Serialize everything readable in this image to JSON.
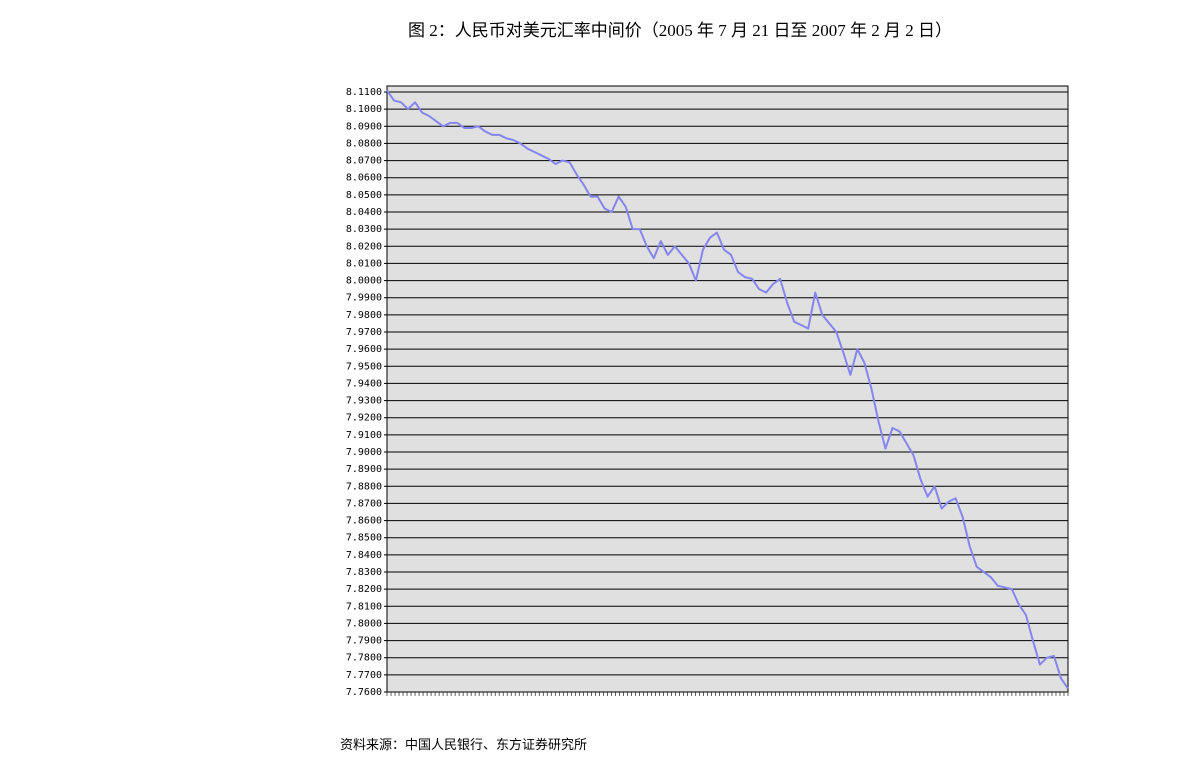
{
  "chart_data": {
    "type": "line",
    "title": "图 2：人民币对美元汇率中间价（2005 年 7 月 21 日至 2007 年 2 月 2 日）",
    "source": "资料来源：中国人民银行、东方证券研究所",
    "color": "#8585f0",
    "grid": true,
    "ylim": [
      7.76,
      8.1135
    ],
    "yticks": [
      {
        "value": 8.11,
        "label": "8.1100"
      },
      {
        "value": 8.1,
        "label": "8.1000"
      },
      {
        "value": 8.09,
        "label": "8.0900"
      },
      {
        "value": 8.08,
        "label": "8.0800"
      },
      {
        "value": 8.07,
        "label": "8.0700"
      },
      {
        "value": 8.06,
        "label": "8.0600"
      },
      {
        "value": 8.05,
        "label": "8.0500"
      },
      {
        "value": 8.04,
        "label": "8.0400"
      },
      {
        "value": 8.03,
        "label": "8.0300"
      },
      {
        "value": 8.02,
        "label": "8.0200"
      },
      {
        "value": 8.01,
        "label": "8.0100"
      },
      {
        "value": 8.0,
        "label": "8.0000"
      },
      {
        "value": 7.99,
        "label": "7.9900"
      },
      {
        "value": 7.98,
        "label": "7.9800"
      },
      {
        "value": 7.97,
        "label": "7.9700"
      },
      {
        "value": 7.96,
        "label": "7.9600"
      },
      {
        "value": 7.95,
        "label": "7.9500"
      },
      {
        "value": 7.94,
        "label": "7.9400"
      },
      {
        "value": 7.93,
        "label": "7.9300"
      },
      {
        "value": 7.92,
        "label": "7.9200"
      },
      {
        "value": 7.91,
        "label": "7.9100"
      },
      {
        "value": 7.9,
        "label": "7.9000"
      },
      {
        "value": 7.89,
        "label": "7.8900"
      },
      {
        "value": 7.88,
        "label": "7.8800"
      },
      {
        "value": 7.87,
        "label": "7.8700"
      },
      {
        "value": 7.86,
        "label": "7.8600"
      },
      {
        "value": 7.85,
        "label": "7.8500"
      },
      {
        "value": 7.84,
        "label": "7.8400"
      },
      {
        "value": 7.83,
        "label": "7.8300"
      },
      {
        "value": 7.82,
        "label": "7.8200"
      },
      {
        "value": 7.81,
        "label": "7.8100"
      },
      {
        "value": 7.8,
        "label": "7.8000"
      },
      {
        "value": 7.79,
        "label": "7.7900"
      },
      {
        "value": 7.78,
        "label": "7.7800"
      },
      {
        "value": 7.77,
        "label": "7.7700"
      },
      {
        "value": 7.76,
        "label": "7.7600"
      }
    ],
    "values": [
      8.111,
      8.105,
      8.104,
      8.1,
      8.104,
      8.098,
      8.096,
      8.093,
      8.09,
      8.092,
      8.092,
      8.089,
      8.089,
      8.09,
      8.087,
      8.085,
      8.085,
      8.083,
      8.082,
      8.08,
      8.077,
      8.075,
      8.073,
      8.071,
      8.068,
      8.07,
      8.069,
      8.062,
      8.056,
      8.049,
      8.049,
      8.042,
      8.04,
      8.049,
      8.043,
      8.03,
      8.03,
      8.02,
      8.013,
      8.023,
      8.015,
      8.02,
      8.015,
      8.01,
      8.0,
      8.018,
      8.025,
      8.028,
      8.018,
      8.015,
      8.005,
      8.002,
      8.001,
      7.995,
      7.993,
      7.998,
      8.001,
      7.987,
      7.976,
      7.974,
      7.972,
      7.993,
      7.98,
      7.975,
      7.97,
      7.958,
      7.945,
      7.96,
      7.952,
      7.937,
      7.918,
      7.902,
      7.914,
      7.912,
      7.905,
      7.898,
      7.884,
      7.874,
      7.88,
      7.867,
      7.871,
      7.873,
      7.862,
      7.845,
      7.833,
      7.83,
      7.827,
      7.822,
      7.821,
      7.82,
      7.811,
      7.805,
      7.79,
      7.776,
      7.78,
      7.781,
      7.768,
      7.762
    ]
  }
}
